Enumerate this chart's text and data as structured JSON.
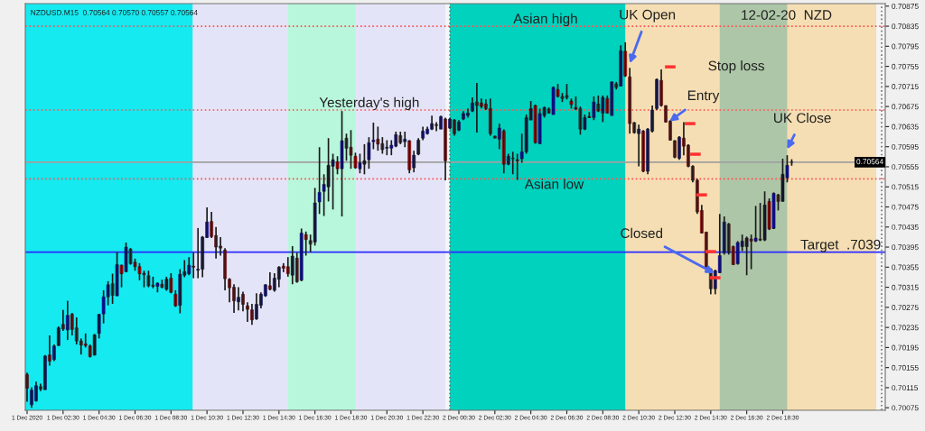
{
  "chart_data": {
    "type": "candlestick",
    "title": "NZDUSD.M15  0.70564 0.70570 0.70557 0.70564",
    "x": [
      "2020-12-01T00:30",
      "2020-12-01T00:45",
      "2020-12-01T01:00",
      "2020-12-01T01:15",
      "2020-12-01T01:30",
      "2020-12-01T01:45",
      "2020-12-01T02:00",
      "2020-12-01T02:15",
      "2020-12-01T02:30",
      "2020-12-01T02:45",
      "2020-12-01T03:00",
      "2020-12-01T03:15",
      "2020-12-01T03:30",
      "2020-12-01T03:45",
      "2020-12-01T04:00",
      "2020-12-01T04:15",
      "2020-12-01T04:30",
      "2020-12-01T04:45",
      "2020-12-01T05:00",
      "2020-12-01T05:15",
      "2020-12-01T05:30",
      "2020-12-01T05:45",
      "2020-12-01T06:00",
      "2020-12-01T06:15",
      "2020-12-01T06:30",
      "2020-12-01T06:45",
      "2020-12-01T07:00",
      "2020-12-01T07:15",
      "2020-12-01T07:30",
      "2020-12-01T07:45",
      "2020-12-01T08:00",
      "2020-12-01T08:15",
      "2020-12-01T08:30",
      "2020-12-01T08:45",
      "2020-12-01T09:00",
      "2020-12-01T09:15",
      "2020-12-01T09:30",
      "2020-12-01T09:45",
      "2020-12-01T10:00",
      "2020-12-01T10:15",
      "2020-12-01T10:30",
      "2020-12-01T10:45",
      "2020-12-01T11:00",
      "2020-12-01T11:15",
      "2020-12-01T11:30",
      "2020-12-01T11:45",
      "2020-12-01T12:00",
      "2020-12-01T12:15",
      "2020-12-01T12:30",
      "2020-12-01T12:45",
      "2020-12-01T13:00",
      "2020-12-01T13:15",
      "2020-12-01T13:30",
      "2020-12-01T13:45",
      "2020-12-01T14:00",
      "2020-12-01T14:15",
      "2020-12-01T14:30",
      "2020-12-01T14:45",
      "2020-12-01T15:00",
      "2020-12-01T15:15",
      "2020-12-01T15:30",
      "2020-12-01T15:45",
      "2020-12-01T16:00",
      "2020-12-01T16:15",
      "2020-12-01T16:30",
      "2020-12-01T16:45",
      "2020-12-01T17:00",
      "2020-12-01T17:15",
      "2020-12-01T17:30",
      "2020-12-01T17:45",
      "2020-12-01T18:00",
      "2020-12-01T18:15",
      "2020-12-01T18:30",
      "2020-12-01T18:45",
      "2020-12-01T19:00",
      "2020-12-01T19:15",
      "2020-12-01T19:30",
      "2020-12-01T19:45",
      "2020-12-01T20:00",
      "2020-12-01T20:15",
      "2020-12-01T20:30",
      "2020-12-01T20:45",
      "2020-12-01T21:00",
      "2020-12-01T21:15",
      "2020-12-01T21:30",
      "2020-12-01T21:45",
      "2020-12-01T22:00",
      "2020-12-01T22:15",
      "2020-12-01T22:30",
      "2020-12-01T22:45",
      "2020-12-01T23:00",
      "2020-12-01T23:15",
      "2020-12-01T23:30",
      "2020-12-01T23:45",
      "2020-12-02T00:00",
      "2020-12-02T00:15",
      "2020-12-02T00:30",
      "2020-12-02T00:45",
      "2020-12-02T01:00",
      "2020-12-02T01:15",
      "2020-12-02T01:30",
      "2020-12-02T01:45",
      "2020-12-02T02:00",
      "2020-12-02T02:15",
      "2020-12-02T02:30",
      "2020-12-02T02:45",
      "2020-12-02T03:00",
      "2020-12-02T03:15",
      "2020-12-02T03:30",
      "2020-12-02T03:45",
      "2020-12-02T04:00",
      "2020-12-02T04:15",
      "2020-12-02T04:30",
      "2020-12-02T04:45",
      "2020-12-02T05:00",
      "2020-12-02T05:15",
      "2020-12-02T05:30",
      "2020-12-02T05:45",
      "2020-12-02T06:00",
      "2020-12-02T06:15",
      "2020-12-02T06:30",
      "2020-12-02T06:45",
      "2020-12-02T07:00",
      "2020-12-02T07:15",
      "2020-12-02T07:30",
      "2020-12-02T07:45",
      "2020-12-02T08:00",
      "2020-12-02T08:15",
      "2020-12-02T08:30",
      "2020-12-02T08:45",
      "2020-12-02T09:00",
      "2020-12-02T09:15",
      "2020-12-02T09:30",
      "2020-12-02T09:45",
      "2020-12-02T10:00",
      "2020-12-02T10:15",
      "2020-12-02T10:30",
      "2020-12-02T10:45",
      "2020-12-02T11:00",
      "2020-12-02T11:15",
      "2020-12-02T11:30",
      "2020-12-02T11:45",
      "2020-12-02T12:00",
      "2020-12-02T12:15",
      "2020-12-02T12:30",
      "2020-12-02T12:45",
      "2020-12-02T13:00",
      "2020-12-02T13:15",
      "2020-12-02T13:30",
      "2020-12-02T13:45",
      "2020-12-02T14:00",
      "2020-12-02T14:15",
      "2020-12-02T14:30",
      "2020-12-02T14:45",
      "2020-12-02T15:00",
      "2020-12-02T15:15",
      "2020-12-02T15:30",
      "2020-12-02T15:45",
      "2020-12-02T16:00",
      "2020-12-02T16:15",
      "2020-12-02T16:30",
      "2020-12-02T16:45",
      "2020-12-02T17:00",
      "2020-12-02T17:15",
      "2020-12-02T17:30",
      "2020-12-02T17:45",
      "2020-12-02T18:00",
      "2020-12-02T18:15",
      "2020-12-02T18:30",
      "2020-12-02T18:45",
      "2020-12-02T19:00"
    ],
    "ohlc": [
      [
        0.70141,
        0.70145,
        0.70087,
        0.70114
      ],
      [
        0.70081,
        0.70116,
        0.70075,
        0.7011
      ],
      [
        0.70089,
        0.70127,
        0.70087,
        0.70119
      ],
      [
        0.70117,
        0.70123,
        0.70108,
        0.70112
      ],
      [
        0.70111,
        0.7018,
        0.70111,
        0.70178
      ],
      [
        0.7018,
        0.70219,
        0.70159,
        0.70168
      ],
      [
        0.70171,
        0.70201,
        0.70168,
        0.70198
      ],
      [
        0.70199,
        0.70237,
        0.70198,
        0.70234
      ],
      [
        0.70241,
        0.7027,
        0.70228,
        0.70232
      ],
      [
        0.7023,
        0.70288,
        0.7021,
        0.70259
      ],
      [
        0.70261,
        0.70264,
        0.70219,
        0.70231
      ],
      [
        0.70234,
        0.70255,
        0.70201,
        0.70208
      ],
      [
        0.70208,
        0.70213,
        0.70181,
        0.702
      ],
      [
        0.70202,
        0.70223,
        0.70195,
        0.70199
      ],
      [
        0.70198,
        0.70201,
        0.70175,
        0.70177
      ],
      [
        0.7018,
        0.70222,
        0.70179,
        0.7022
      ],
      [
        0.70223,
        0.70262,
        0.70213,
        0.70261
      ],
      [
        0.70262,
        0.70309,
        0.70243,
        0.70296
      ],
      [
        0.70296,
        0.70327,
        0.70279,
        0.7032
      ],
      [
        0.70322,
        0.70342,
        0.70282,
        0.70299
      ],
      [
        0.70298,
        0.70385,
        0.70297,
        0.7036
      ],
      [
        0.70359,
        0.7036,
        0.70315,
        0.70342
      ],
      [
        0.70346,
        0.70404,
        0.70345,
        0.70395
      ],
      [
        0.70391,
        0.70393,
        0.7036,
        0.70362
      ],
      [
        0.70365,
        0.70372,
        0.70348,
        0.70356
      ],
      [
        0.70356,
        0.70363,
        0.70329,
        0.70342
      ],
      [
        0.70343,
        0.70348,
        0.70315,
        0.7034
      ],
      [
        0.70338,
        0.70348,
        0.70315,
        0.70318
      ],
      [
        0.70319,
        0.70336,
        0.70313,
        0.70317
      ],
      [
        0.70317,
        0.70325,
        0.70305,
        0.70323
      ],
      [
        0.70321,
        0.7033,
        0.70313,
        0.70315
      ],
      [
        0.70311,
        0.70336,
        0.70308,
        0.70331
      ],
      [
        0.70333,
        0.70343,
        0.70303,
        0.70305
      ],
      [
        0.70301,
        0.70309,
        0.70276,
        0.70278
      ],
      [
        0.70279,
        0.70351,
        0.70263,
        0.70341
      ],
      [
        0.70339,
        0.70369,
        0.70335,
        0.70346
      ],
      [
        0.70342,
        0.70375,
        0.70339,
        0.70359
      ],
      [
        0.70357,
        0.70384,
        0.70333,
        0.70355
      ],
      [
        0.70349,
        0.70433,
        0.70333,
        0.70351
      ],
      [
        0.70351,
        0.70417,
        0.70335,
        0.70415
      ],
      [
        0.70414,
        0.70474,
        0.70413,
        0.70445
      ],
      [
        0.70446,
        0.70465,
        0.70413,
        0.70416
      ],
      [
        0.70418,
        0.70435,
        0.70372,
        0.70395
      ],
      [
        0.70397,
        0.70415,
        0.70378,
        0.70393
      ],
      [
        0.70389,
        0.70393,
        0.70309,
        0.70332
      ],
      [
        0.70331,
        0.70333,
        0.70285,
        0.70314
      ],
      [
        0.70315,
        0.70321,
        0.70264,
        0.70288
      ],
      [
        0.70286,
        0.70315,
        0.70269,
        0.70295
      ],
      [
        0.70301,
        0.70306,
        0.70267,
        0.70281
      ],
      [
        0.70278,
        0.70285,
        0.70246,
        0.70271
      ],
      [
        0.7027,
        0.70282,
        0.7024,
        0.7025
      ],
      [
        0.70252,
        0.70303,
        0.7025,
        0.70281
      ],
      [
        0.70279,
        0.70305,
        0.70273,
        0.70301
      ],
      [
        0.70298,
        0.70321,
        0.70296,
        0.7032
      ],
      [
        0.70318,
        0.70345,
        0.70309,
        0.70311
      ],
      [
        0.70309,
        0.70343,
        0.70306,
        0.70333
      ],
      [
        0.70331,
        0.70357,
        0.70315,
        0.70355
      ],
      [
        0.70357,
        0.70363,
        0.70345,
        0.70353
      ],
      [
        0.70356,
        0.70375,
        0.70336,
        0.70342
      ],
      [
        0.70339,
        0.70397,
        0.70321,
        0.70377
      ],
      [
        0.70373,
        0.70384,
        0.70324,
        0.70326
      ],
      [
        0.70329,
        0.70432,
        0.70327,
        0.70423
      ],
      [
        0.7042,
        0.70426,
        0.70378,
        0.7041
      ],
      [
        0.70408,
        0.7042,
        0.70385,
        0.70401
      ],
      [
        0.70405,
        0.70513,
        0.70398,
        0.70483
      ],
      [
        0.70485,
        0.70594,
        0.70461,
        0.70504
      ],
      [
        0.70506,
        0.7054,
        0.70457,
        0.7052
      ],
      [
        0.70515,
        0.70612,
        0.70486,
        0.70558
      ],
      [
        0.70556,
        0.70581,
        0.7047,
        0.70569
      ],
      [
        0.70565,
        0.70576,
        0.7054,
        0.70551
      ],
      [
        0.70551,
        0.70666,
        0.70456,
        0.70607
      ],
      [
        0.70612,
        0.70621,
        0.70567,
        0.70592
      ],
      [
        0.70594,
        0.70628,
        0.70551,
        0.70578
      ],
      [
        0.70576,
        0.70583,
        0.70551,
        0.70553
      ],
      [
        0.70551,
        0.70581,
        0.70542,
        0.70563
      ],
      [
        0.7056,
        0.706,
        0.7054,
        0.70567
      ],
      [
        0.70569,
        0.70614,
        0.70551,
        0.70603
      ],
      [
        0.70605,
        0.70643,
        0.7059,
        0.70608
      ],
      [
        0.7061,
        0.70635,
        0.70587,
        0.706
      ],
      [
        0.70601,
        0.70614,
        0.70581,
        0.70589
      ],
      [
        0.70592,
        0.70608,
        0.70578,
        0.70594
      ],
      [
        0.70592,
        0.70608,
        0.70578,
        0.70598
      ],
      [
        0.70596,
        0.70625,
        0.70594,
        0.70619
      ],
      [
        0.70617,
        0.70625,
        0.706,
        0.70603
      ],
      [
        0.70605,
        0.70625,
        0.70594,
        0.7061
      ],
      [
        0.70607,
        0.70608,
        0.70542,
        0.70549
      ],
      [
        0.70553,
        0.70587,
        0.70544,
        0.70578
      ],
      [
        0.7058,
        0.70612,
        0.70578,
        0.70608
      ],
      [
        0.70612,
        0.70635,
        0.70608,
        0.70626
      ],
      [
        0.70621,
        0.70635,
        0.70619,
        0.7063
      ],
      [
        0.7063,
        0.70657,
        0.70628,
        0.70641
      ],
      [
        0.70639,
        0.70644,
        0.70626,
        0.70637
      ],
      [
        0.7063,
        0.70657,
        0.7063,
        0.70655
      ],
      [
        0.7065,
        0.70653,
        0.70528,
        0.70567
      ],
      [
        0.70632,
        0.70653,
        0.7063,
        0.7065
      ],
      [
        0.70648,
        0.7065,
        0.70617,
        0.70621
      ],
      [
        0.70628,
        0.70648,
        0.70626,
        0.70644
      ],
      [
        0.7065,
        0.70666,
        0.70648,
        0.70661
      ],
      [
        0.70657,
        0.70671,
        0.70653,
        0.70662
      ],
      [
        0.70666,
        0.70693,
        0.70664,
        0.70682
      ],
      [
        0.70684,
        0.70722,
        0.70623,
        0.70677
      ],
      [
        0.70682,
        0.70691,
        0.70671,
        0.70675
      ],
      [
        0.7068,
        0.70689,
        0.70668,
        0.70671
      ],
      [
        0.70671,
        0.70691,
        0.70617,
        0.70621
      ],
      [
        0.70616,
        0.70617,
        0.70612,
        0.70612
      ],
      [
        0.7061,
        0.70641,
        0.7059,
        0.70632
      ],
      [
        0.70626,
        0.7063,
        0.70542,
        0.7056
      ],
      [
        0.7056,
        0.70581,
        0.70558,
        0.70576
      ],
      [
        0.70572,
        0.70585,
        0.7054,
        0.70571
      ],
      [
        0.70569,
        0.70581,
        0.70529,
        0.70567
      ],
      [
        0.70571,
        0.70621,
        0.70563,
        0.70585
      ],
      [
        0.70585,
        0.70659,
        0.70581,
        0.70653
      ],
      [
        0.70648,
        0.70686,
        0.70648,
        0.70671
      ],
      [
        0.70677,
        0.70679,
        0.70601,
        0.70603
      ],
      [
        0.70601,
        0.70671,
        0.706,
        0.70661
      ],
      [
        0.70657,
        0.70675,
        0.70653,
        0.70673
      ],
      [
        0.7067,
        0.70673,
        0.70661,
        0.70662
      ],
      [
        0.70659,
        0.70715,
        0.70659,
        0.70713
      ],
      [
        0.70709,
        0.7072,
        0.70693,
        0.70695
      ],
      [
        0.70695,
        0.70702,
        0.70684,
        0.70691
      ],
      [
        0.70697,
        0.7072,
        0.70689,
        0.70693
      ],
      [
        0.70686,
        0.70691,
        0.70671,
        0.70679
      ],
      [
        0.70673,
        0.70695,
        0.70668,
        0.7067
      ],
      [
        0.70671,
        0.70675,
        0.70619,
        0.7063
      ],
      [
        0.7063,
        0.70659,
        0.70628,
        0.70653
      ],
      [
        0.70655,
        0.70664,
        0.70652,
        0.70653
      ],
      [
        0.70653,
        0.70695,
        0.70648,
        0.70684
      ],
      [
        0.7068,
        0.70697,
        0.70664,
        0.70666
      ],
      [
        0.70662,
        0.70697,
        0.70644,
        0.70693
      ],
      [
        0.70691,
        0.70697,
        0.70661,
        0.70662
      ],
      [
        0.70657,
        0.70725,
        0.70657,
        0.70724
      ],
      [
        0.7072,
        0.70724,
        0.70709,
        0.70713
      ],
      [
        0.70716,
        0.70797,
        0.70715,
        0.70786
      ],
      [
        0.70785,
        0.70803,
        0.70734,
        0.70736
      ],
      [
        0.70734,
        0.70752,
        0.70621,
        0.70641
      ],
      [
        0.70643,
        0.70644,
        0.70621,
        0.70623
      ],
      [
        0.70621,
        0.70639,
        0.70556,
        0.7063
      ],
      [
        0.70626,
        0.70628,
        0.70544,
        0.70546
      ],
      [
        0.70546,
        0.70632,
        0.7054,
        0.7063
      ],
      [
        0.70626,
        0.70677,
        0.70623,
        0.70668
      ],
      [
        0.70671,
        0.70731,
        0.70668,
        0.70729
      ],
      [
        0.70727,
        0.70749,
        0.70675,
        0.70677
      ],
      [
        0.70677,
        0.70677,
        0.70643,
        0.70644
      ],
      [
        0.70646,
        0.70648,
        0.70607,
        0.70608
      ],
      [
        0.70607,
        0.70608,
        0.70572,
        0.70574
      ],
      [
        0.70572,
        0.70616,
        0.70569,
        0.70614
      ],
      [
        0.70612,
        0.70644,
        0.70578,
        0.70596
      ],
      [
        0.70598,
        0.706,
        0.70554,
        0.70556
      ],
      [
        0.70556,
        0.70558,
        0.70524,
        0.70528
      ],
      [
        0.70528,
        0.70531,
        0.70461,
        0.70465
      ],
      [
        0.70468,
        0.70479,
        0.70422,
        0.70423
      ],
      [
        0.70425,
        0.70425,
        0.70351,
        0.70353
      ],
      [
        0.70351,
        0.70353,
        0.70301,
        0.70312
      ],
      [
        0.70312,
        0.7035,
        0.70301,
        0.70348
      ],
      [
        0.70344,
        0.70461,
        0.70343,
        0.70378
      ],
      [
        0.70384,
        0.70456,
        0.7038,
        0.70445
      ],
      [
        0.70441,
        0.70443,
        0.7038,
        0.70384
      ],
      [
        0.70396,
        0.70398,
        0.7036,
        0.7036
      ],
      [
        0.70362,
        0.70407,
        0.7036,
        0.70404
      ],
      [
        0.70396,
        0.7042,
        0.70387,
        0.70407
      ],
      [
        0.70396,
        0.70416,
        0.70339,
        0.70413
      ],
      [
        0.70411,
        0.7042,
        0.70351,
        0.70407
      ],
      [
        0.70407,
        0.70477,
        0.70405,
        0.70413
      ],
      [
        0.70411,
        0.70483,
        0.70407,
        0.70409
      ],
      [
        0.70409,
        0.70506,
        0.70407,
        0.70479
      ],
      [
        0.70486,
        0.70492,
        0.70429,
        0.70431
      ],
      [
        0.70432,
        0.70504,
        0.70431,
        0.70502
      ],
      [
        0.70499,
        0.70501,
        0.70468,
        0.70486
      ],
      [
        0.70486,
        0.70571,
        0.70486,
        0.7054
      ],
      [
        0.70533,
        0.70578,
        0.70524,
        0.70558
      ],
      [
        0.70564,
        0.7057,
        0.70557,
        0.70564
      ]
    ],
    "series": [
      {
        "type": "scatter",
        "color": "#ff3030",
        "x": [
          "2020-12-02T12:15",
          "2020-12-02T13:21",
          "2020-12-02T13:39",
          "2020-12-02T14:00",
          "2020-12-02T14:30",
          "2020-12-02T14:45"
        ],
        "values": [
          0.70754,
          0.70641,
          0.7058,
          0.70499,
          0.70386,
          0.70334
        ]
      }
    ],
    "xlim": [
      "2020-12-01T00:24",
      "2020-12-03T00:12"
    ],
    "xticks": [
      {
        "value": "2020-12-01T00:30",
        "label": "1 Dec 2020"
      },
      {
        "value": "2020-12-01T02:30",
        "label": "1 Dec 02:30"
      },
      {
        "value": "2020-12-01T04:30",
        "label": "1 Dec 04:30"
      },
      {
        "value": "2020-12-01T06:30",
        "label": "1 Dec 06:30"
      },
      {
        "value": "2020-12-01T08:30",
        "label": "1 Dec 08:30"
      },
      {
        "value": "2020-12-01T10:30",
        "label": "1 Dec 10:30"
      },
      {
        "value": "2020-12-01T12:30",
        "label": "1 Dec 12:30"
      },
      {
        "value": "2020-12-01T14:30",
        "label": "1 Dec 14:30"
      },
      {
        "value": "2020-12-01T16:30",
        "label": "1 Dec 16:30"
      },
      {
        "value": "2020-12-01T18:30",
        "label": "1 Dec 18:30"
      },
      {
        "value": "2020-12-01T20:30",
        "label": "1 Dec 20:30"
      },
      {
        "value": "2020-12-01T22:30",
        "label": "1 Dec 22:30"
      },
      {
        "value": "2020-12-02T00:30",
        "label": "2 Dec 00:30"
      },
      {
        "value": "2020-12-02T02:30",
        "label": "2 Dec 02:30"
      },
      {
        "value": "2020-12-02T04:30",
        "label": "2 Dec 04:30"
      },
      {
        "value": "2020-12-02T06:30",
        "label": "2 Dec 06:30"
      },
      {
        "value": "2020-12-02T08:30",
        "label": "2 Dec 08:30"
      },
      {
        "value": "2020-12-02T10:30",
        "label": "2 Dec 10:30"
      },
      {
        "value": "2020-12-02T12:30",
        "label": "2 Dec 12:30"
      },
      {
        "value": "2020-12-02T14:30",
        "label": "2 Dec 14:30"
      },
      {
        "value": "2020-12-02T16:30",
        "label": "2 Dec 16:30"
      },
      {
        "value": "2020-12-02T18:30",
        "label": "2 Dec 18:30"
      }
    ],
    "ylim": [
      0.7007,
      0.7088
    ],
    "yticks": [
      0.70075,
      0.70115,
      0.70155,
      0.70195,
      0.70235,
      0.70275,
      0.70315,
      0.70355,
      0.70395,
      0.70435,
      0.70475,
      0.70515,
      0.70555,
      0.70595,
      0.70635,
      0.70675,
      0.70715,
      0.70755,
      0.70795,
      0.70835,
      0.70875
    ],
    "bands": [
      {
        "axis": "x",
        "from": "2020-12-01T00:24",
        "to": "2020-12-01T23:45",
        "color": "#e4e4f8"
      },
      {
        "axis": "x",
        "from": "2020-12-01T00:24",
        "to": "2020-12-01T09:42",
        "color": "#14eaf0"
      },
      {
        "axis": "x",
        "from": "2020-12-01T15:00",
        "to": "2020-12-01T18:45",
        "color": "#b8f7dc"
      },
      {
        "axis": "x",
        "from": "2020-12-02T00:00",
        "to": "2020-12-02T23:42",
        "color": "#f5deb3"
      },
      {
        "axis": "x",
        "from": "2020-12-02T00:00",
        "to": "2020-12-02T09:45",
        "color": "#00d2be"
      },
      {
        "axis": "x",
        "from": "2020-12-02T15:00",
        "to": "2020-12-02T18:45",
        "color": "#adc6a8"
      }
    ],
    "ref_lines": [
      {
        "axis": "y",
        "value": 0.70564,
        "label": "0.70564",
        "color": "#a0a0a0",
        "line_style": "solid"
      },
      {
        "axis": "y",
        "value": 0.70385,
        "label": "Target  .7039",
        "color": "#2b2bff",
        "line_style": "solid"
      },
      {
        "axis": "y",
        "value": 0.70835,
        "label": "Asian high",
        "color": "#ff5050",
        "line_style": "dotted"
      },
      {
        "axis": "y",
        "value": 0.70668,
        "label": "Yesterday's high",
        "color": "#ff5050",
        "line_style": "dotted"
      },
      {
        "axis": "y",
        "value": 0.70531,
        "label": "Asian low",
        "color": "#ff5050",
        "line_style": "dotted"
      },
      {
        "axis": "x",
        "value": "2020-12-02T00:00",
        "color": "#707070",
        "line_style": "dotted"
      },
      {
        "axis": "x",
        "value": "2020-12-03T00:00",
        "color": "#707070",
        "line_style": "dotted"
      }
    ],
    "annotations": [
      {
        "text": "UK Open",
        "x": "2020-12-02T10:00",
        "y": 0.70761
      },
      {
        "text": "Stop loss",
        "x": "2020-12-02T12:15",
        "y": 0.70754
      },
      {
        "text": "Entry",
        "x": "2020-12-02T12:12",
        "y": 0.70645
      },
      {
        "text": "UK Close",
        "x": "2020-12-02T18:45",
        "y": 0.7059
      },
      {
        "text": "Closed",
        "x": "2020-12-02T14:42",
        "y": 0.70343
      },
      "12-02-20  NZD"
    ],
    "grid": false,
    "legend": false
  }
}
